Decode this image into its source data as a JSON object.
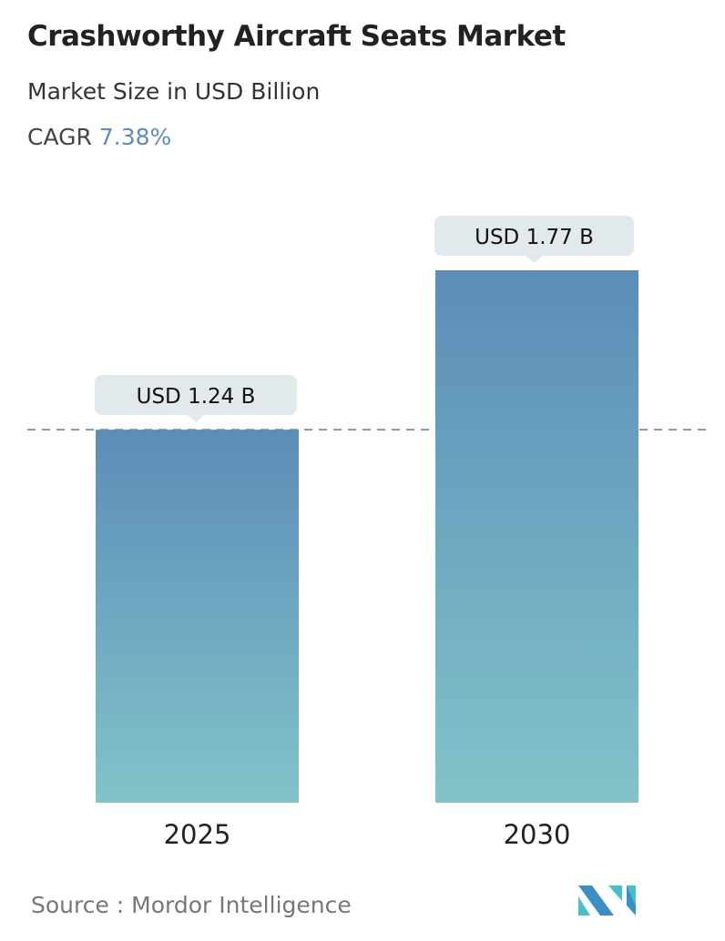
{
  "chart_data": {
    "type": "bar",
    "title": "Crashworthy Aircraft Seats Market",
    "subtitle": "Market Size in USD Billion",
    "cagr_label": "CAGR",
    "cagr_value": "7.38%",
    "categories": [
      "2025",
      "2030"
    ],
    "values": [
      1.24,
      1.77
    ],
    "data_labels": [
      "USD 1.24 B",
      "USD 1.77 B"
    ],
    "ylim": [
      0,
      1.77
    ],
    "grid": false,
    "reference_line": {
      "value": 1.24,
      "style": "dashed"
    },
    "colors": {
      "bar_top": "#5b8db8",
      "bar_bottom": "#82c3c9",
      "label_bg": "#e1e9ec",
      "dash": "#5a7fa0"
    }
  },
  "source": "Source :  Mordor Intelligence",
  "logo": "MN"
}
